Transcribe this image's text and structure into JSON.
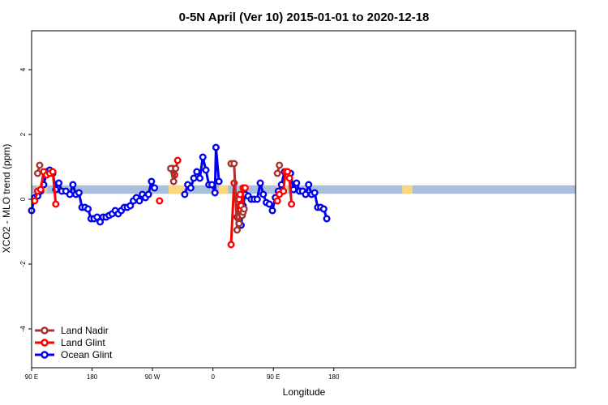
{
  "chart_data": {
    "type": "line",
    "title": "0-5N April (Ver 10)   2015-01-01 to 2020-12-18",
    "xlabel": "Longitude",
    "ylabel": "XCO2 - MLO trend (ppm)",
    "xlim": [
      -90,
      180
    ],
    "ylim": [
      -5.2,
      5.2
    ],
    "x_ticks": [
      {
        "value": -90,
        "label": "90 E"
      },
      {
        "value": -60,
        "label": "180"
      },
      {
        "value": -30,
        "label": "90 W"
      },
      {
        "value": 0,
        "label": "0"
      },
      {
        "value": 30,
        "label": "90 E"
      },
      {
        "value": 60,
        "label": "180"
      }
    ],
    "y_ticks": [
      {
        "value": -4,
        "label": "-4"
      },
      {
        "value": -2,
        "label": "-2"
      },
      {
        "value": 0,
        "label": "0"
      },
      {
        "value": 2,
        "label": "2"
      },
      {
        "value": 4,
        "label": "4"
      }
    ],
    "band": {
      "y_center": 0.3,
      "half_height": 0.13,
      "color_ocean": "#a9bfdc",
      "color_land": "#f9d77f",
      "land_segments": [
        [
          -87.5,
          -82.5
        ],
        [
          -22,
          -13
        ],
        [
          3,
          7.5
        ],
        [
          31.5,
          37
        ],
        [
          94,
          99
        ]
      ]
    },
    "legend": {
      "position": "bottom-left",
      "entries": [
        {
          "label": "Land Nadir",
          "color": "#a5332f"
        },
        {
          "label": "Land Glint",
          "color": "#ff0000"
        },
        {
          "label": "Ocean Glint",
          "color": "#0000ee"
        }
      ]
    },
    "series": [
      {
        "name": "Ocean Glint",
        "color": "#0000ee",
        "segments": [
          [
            [
              -90,
              -0.35
            ],
            [
              -88.5,
              0.05
            ],
            [
              -87,
              0.1
            ],
            [
              -85.5,
              0.25
            ],
            [
              -84,
              0.45
            ],
            [
              -82.5,
              0.85
            ],
            [
              -81,
              0.9
            ],
            [
              -79.5,
              0.8
            ],
            [
              -78,
              0.3
            ],
            [
              -76.5,
              0.5
            ],
            [
              -75,
              0.25
            ],
            [
              -73,
              0.25
            ],
            [
              -71,
              0.15
            ],
            [
              -69.5,
              0.45
            ],
            [
              -68,
              0.15
            ],
            [
              -66.5,
              0.2
            ],
            [
              -65,
              -0.25
            ],
            [
              -63.5,
              -0.25
            ],
            [
              -62,
              -0.3
            ],
            [
              -60.5,
              -0.6
            ],
            [
              -59,
              -0.6
            ],
            [
              -57.5,
              -0.55
            ],
            [
              -56,
              -0.7
            ],
            [
              -54.5,
              -0.55
            ],
            [
              -53,
              -0.55
            ],
            [
              -51.5,
              -0.5
            ],
            [
              -50,
              -0.45
            ],
            [
              -48.5,
              -0.35
            ],
            [
              -47,
              -0.45
            ],
            [
              -45.5,
              -0.35
            ],
            [
              -44,
              -0.25
            ],
            [
              -42.5,
              -0.25
            ],
            [
              -41,
              -0.2
            ],
            [
              -39.5,
              -0.05
            ],
            [
              -38,
              0.05
            ],
            [
              -36.5,
              -0.05
            ],
            [
              -35,
              0.15
            ],
            [
              -33.5,
              0.05
            ],
            [
              -32,
              0.15
            ],
            [
              -30.5,
              0.55
            ],
            [
              -29,
              0.35
            ]
          ],
          [
            [
              -14,
              0.15
            ],
            [
              -12.5,
              0.45
            ],
            [
              -11,
              0.35
            ],
            [
              -9.5,
              0.65
            ],
            [
              -8,
              0.85
            ],
            [
              -6.5,
              0.65
            ],
            [
              -5,
              1.3
            ],
            [
              -3.5,
              0.9
            ],
            [
              -2,
              0.45
            ],
            [
              -0.5,
              0.45
            ],
            [
              1,
              0.2
            ],
            [
              1.5,
              1.6
            ],
            [
              3,
              0.55
            ]
          ],
          [
            [
              14,
              -0.8
            ],
            [
              15,
              -0.2
            ],
            [
              16,
              0.15
            ],
            [
              17.5,
              0.1
            ],
            [
              19,
              0.0
            ],
            [
              20.5,
              0.0
            ],
            [
              22,
              0.0
            ],
            [
              23.5,
              0.5
            ],
            [
              25,
              0.15
            ],
            [
              26.5,
              -0.1
            ],
            [
              28,
              -0.15
            ],
            [
              29.5,
              -0.35
            ],
            [
              31,
              0.05
            ],
            [
              32.5,
              0.25
            ],
            [
              34,
              0.45
            ],
            [
              35.5,
              0.85
            ],
            [
              37,
              0.85
            ],
            [
              38.5,
              0.8
            ],
            [
              40,
              0.3
            ],
            [
              41.5,
              0.5
            ],
            [
              43,
              0.25
            ],
            [
              44.5,
              0.25
            ],
            [
              46,
              0.15
            ],
            [
              47.5,
              0.45
            ],
            [
              49,
              0.15
            ],
            [
              50.5,
              0.2
            ],
            [
              52,
              -0.25
            ],
            [
              53.5,
              -0.25
            ],
            [
              55,
              -0.3
            ],
            [
              56.5,
              -0.6
            ]
          ]
        ]
      },
      {
        "name": "Land Glint",
        "color": "#ff0000",
        "segments": [
          [
            [
              -88.5,
              -0.05
            ],
            [
              -87,
              0.25
            ],
            [
              -85.5,
              0.3
            ],
            [
              -84,
              0.85
            ],
            [
              -82.5,
              0.75
            ],
            [
              -81,
              0.8
            ],
            [
              -79.5,
              0.85
            ],
            [
              -78,
              -0.15
            ]
          ],
          [
            [
              -26.5,
              -0.05
            ]
          ],
          [
            [
              -20,
              0.95
            ],
            [
              -19,
              0.75
            ],
            [
              -17.5,
              1.2
            ]
          ],
          [
            [
              9,
              -1.4
            ],
            [
              10.5,
              0.5
            ],
            [
              12,
              -0.55
            ],
            [
              13,
              0.0
            ],
            [
              13.5,
              0.15
            ],
            [
              14,
              -0.2
            ],
            [
              14.5,
              -0.5
            ],
            [
              15,
              0.35
            ],
            [
              16,
              0.35
            ]
          ],
          [
            [
              32,
              -0.05
            ],
            [
              33,
              0.15
            ],
            [
              35,
              0.25
            ],
            [
              36,
              0.85
            ],
            [
              37,
              0.85
            ],
            [
              38,
              0.65
            ],
            [
              39,
              -0.15
            ]
          ]
        ]
      },
      {
        "name": "Land Nadir",
        "color": "#a5332f",
        "segments": [
          [
            [
              -87,
              0.8
            ],
            [
              -86,
              1.05
            ]
          ],
          [
            [
              -21,
              0.95
            ],
            [
              -19.5,
              0.55
            ],
            [
              -18.5,
              0.95
            ]
          ],
          [
            [
              9,
              1.1
            ],
            [
              10.5,
              1.1
            ],
            [
              12,
              -0.95
            ],
            [
              13,
              -0.75
            ],
            [
              14,
              -0.45
            ],
            [
              14.5,
              -0.5
            ],
            [
              15,
              -0.4
            ],
            [
              15.5,
              -0.3
            ]
          ],
          [
            [
              32,
              0.8
            ],
            [
              33,
              1.05
            ]
          ]
        ]
      }
    ]
  }
}
